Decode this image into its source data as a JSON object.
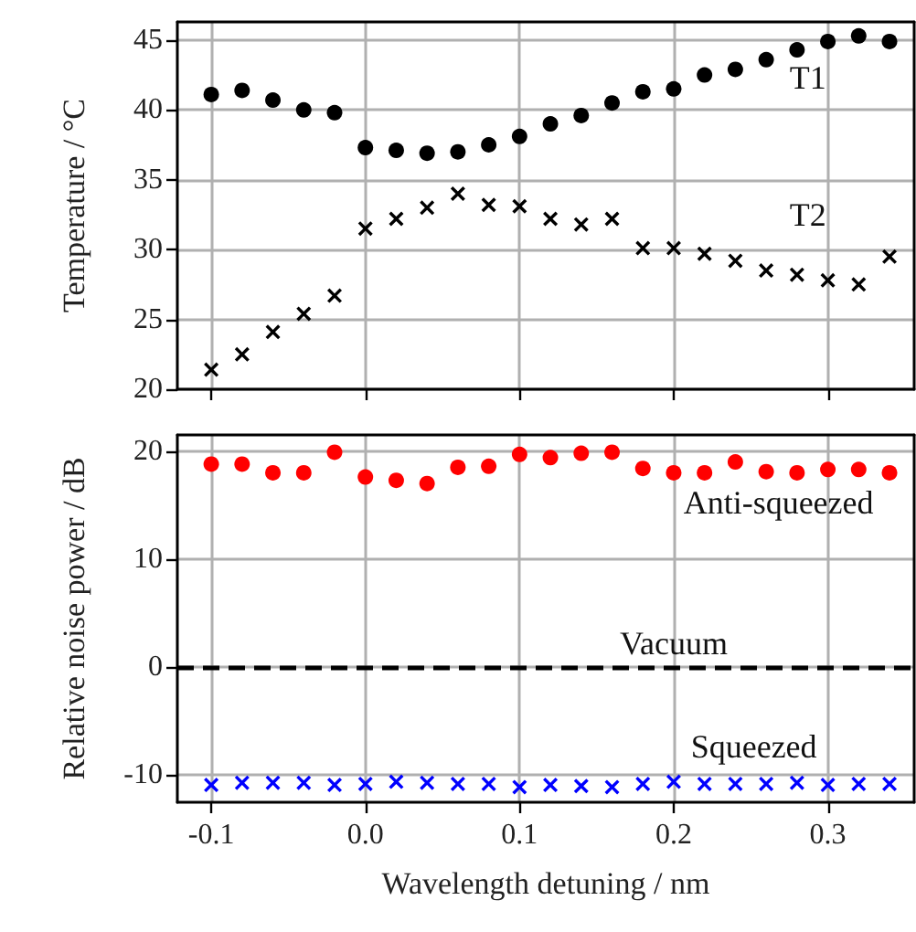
{
  "chart_data": [
    {
      "type": "scatter",
      "ylabel": "Temperature / °C",
      "x": [
        -0.1,
        -0.08,
        -0.06,
        -0.04,
        -0.02,
        0.0,
        0.02,
        0.04,
        0.06,
        0.08,
        0.1,
        0.12,
        0.14,
        0.16,
        0.18,
        0.2,
        0.22,
        0.24,
        0.26,
        0.28,
        0.3,
        0.32,
        0.34
      ],
      "series": [
        {
          "name": "T1",
          "color": "#000000",
          "marker": "circle",
          "values": [
            41.1,
            41.4,
            40.7,
            40.0,
            39.8,
            37.3,
            37.1,
            36.9,
            37.0,
            37.5,
            38.1,
            39.0,
            39.6,
            40.5,
            41.3,
            41.5,
            42.5,
            42.9,
            43.6,
            44.3,
            44.9,
            45.3,
            44.9
          ]
        },
        {
          "name": "T2",
          "color": "#000000",
          "marker": "cross",
          "values": [
            21.4,
            22.5,
            24.1,
            25.4,
            26.7,
            31.5,
            32.2,
            33.0,
            34.0,
            33.2,
            33.1,
            32.2,
            31.8,
            32.2,
            30.1,
            30.1,
            29.7,
            29.2,
            28.5,
            28.2,
            27.8,
            27.5,
            29.5
          ]
        }
      ],
      "xlim": [
        -0.122,
        0.356
      ],
      "xticks": [
        -0.1,
        0,
        0.1,
        0.2,
        0.3
      ],
      "ylim": [
        20,
        46.3
      ],
      "yticks": [
        20,
        25,
        30,
        35,
        40,
        45
      ],
      "grid": true,
      "tick_labels": "y"
    },
    {
      "type": "scatter",
      "ylabel": "Relative noise power / dB",
      "xlabel": "Wavelength detuning / nm",
      "x": [
        -0.1,
        -0.08,
        -0.06,
        -0.04,
        -0.02,
        0.0,
        0.02,
        0.04,
        0.06,
        0.08,
        0.1,
        0.12,
        0.14,
        0.16,
        0.18,
        0.2,
        0.22,
        0.24,
        0.26,
        0.28,
        0.3,
        0.32,
        0.34
      ],
      "series": [
        {
          "name": "Anti-squeezed",
          "color": "#ff0000",
          "marker": "circle",
          "values": [
            18.8,
            18.8,
            18.0,
            18.0,
            19.9,
            17.6,
            17.3,
            17.0,
            18.5,
            18.6,
            19.7,
            19.4,
            19.8,
            19.9,
            18.4,
            18.0,
            18.0,
            19.0,
            18.1,
            18.0,
            18.3,
            18.3,
            18.0
          ]
        },
        {
          "name": "Squeezed",
          "color": "#0000ff",
          "marker": "cross",
          "values": [
            -10.9,
            -10.7,
            -10.7,
            -10.7,
            -10.9,
            -10.8,
            -10.6,
            -10.7,
            -10.8,
            -10.8,
            -11.1,
            -10.9,
            -11.0,
            -11.1,
            -10.8,
            -10.6,
            -10.8,
            -10.8,
            -10.8,
            -10.7,
            -10.9,
            -10.8,
            -10.8
          ]
        }
      ],
      "ref_lines": [
        {
          "axis": "y",
          "value": 0,
          "label": "Vacuum",
          "color": "#000000",
          "line_style": "dashed"
        }
      ],
      "xlim": [
        -0.122,
        0.356
      ],
      "xticks": [
        {
          "value": -0.1,
          "label": "-0.1"
        },
        {
          "value": 0.0,
          "label": "0.0"
        },
        {
          "value": 0.1,
          "label": "0.1"
        },
        {
          "value": 0.2,
          "label": "0.2"
        },
        {
          "value": 0.3,
          "label": "0.3"
        }
      ],
      "ylim": [
        -12.5,
        21.5
      ],
      "yticks": [
        -10,
        0,
        10,
        20
      ],
      "grid": true
    }
  ]
}
